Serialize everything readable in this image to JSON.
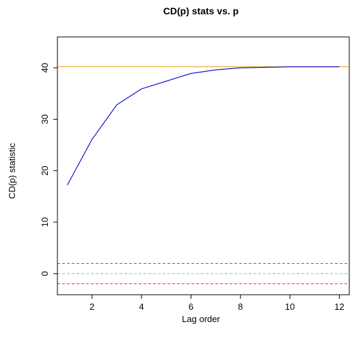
{
  "chart_data": {
    "type": "line",
    "title": "CD(p) stats vs. p",
    "xlabel": "Lag order",
    "ylabel": "CD(p) statistic",
    "xlim": [
      0.6,
      12.4
    ],
    "ylim": [
      -4.1,
      46.0
    ],
    "x_ticks": [
      2,
      4,
      6,
      8,
      10,
      12
    ],
    "y_ticks": [
      0,
      10,
      20,
      30,
      40
    ],
    "grid": false,
    "series": [
      {
        "color": "#0000cc",
        "x": [
          1,
          2,
          3,
          4,
          5,
          6,
          7,
          8,
          9,
          10,
          11,
          12
        ],
        "values": [
          17.2,
          26.1,
          32.8,
          35.9,
          37.4,
          38.9,
          39.6,
          40.0,
          40.1,
          40.2,
          40.2,
          40.2
        ]
      }
    ],
    "reference_lines": [
      {
        "y": 40.2,
        "color": "#e8a317",
        "style": "solid"
      },
      {
        "y": 1.96,
        "color": "#e8262a",
        "style": "dashed"
      },
      {
        "y": -1.96,
        "color": "#e8262a",
        "style": "dashed"
      },
      {
        "y": 0,
        "color": "#aaaaaa",
        "style": "dashed"
      }
    ]
  }
}
